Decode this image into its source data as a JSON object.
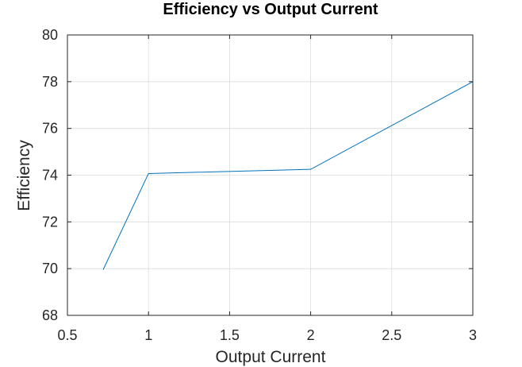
{
  "chart_data": {
    "type": "line",
    "title": "Efficiency vs Output Current",
    "xlabel": "Output Current",
    "ylabel": "Efficiency",
    "xlim": [
      0.5,
      3
    ],
    "ylim": [
      68,
      80
    ],
    "x_ticks": [
      0.5,
      1,
      1.5,
      2,
      2.5,
      3
    ],
    "y_ticks": [
      68,
      70,
      72,
      74,
      76,
      78,
      80
    ],
    "x_tick_labels": [
      "0.5",
      "1",
      "1.5",
      "2",
      "2.5",
      "3"
    ],
    "y_tick_labels": [
      "68",
      "70",
      "72",
      "74",
      "76",
      "78",
      "80"
    ],
    "grid": true,
    "series": [
      {
        "color": "#0072bd",
        "x": [
          0.72,
          1.0,
          2.0,
          3.0
        ],
        "values": [
          69.95,
          74.07,
          74.25,
          78.0
        ]
      }
    ]
  }
}
